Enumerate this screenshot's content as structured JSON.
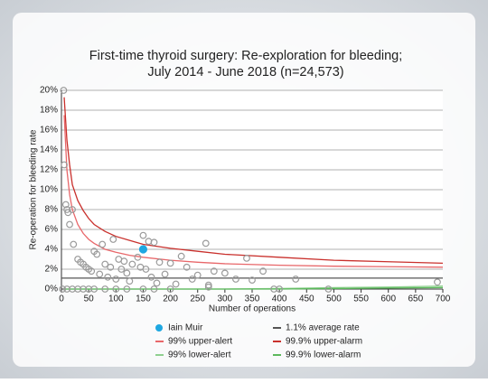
{
  "chart_data": {
    "type": "funnel",
    "title": "First-time thyroid surgery: Re-exploration for bleeding;",
    "subtitle": "July 2014 - June 2018 (n=24,573)",
    "x_label": "Number of operations",
    "y_label": "Re-operation for bleeding rate",
    "xlim": [
      0,
      700
    ],
    "xticks": [
      0,
      50,
      100,
      150,
      200,
      250,
      300,
      350,
      400,
      450,
      500,
      550,
      600,
      650,
      700
    ],
    "ylim": [
      0,
      20
    ],
    "yticks": [
      {
        "value": 0,
        "label": "0%"
      },
      {
        "value": 2,
        "label": "2%"
      },
      {
        "value": 4,
        "label": "4%"
      },
      {
        "value": 6,
        "label": "6%"
      },
      {
        "value": 8,
        "label": "8%"
      },
      {
        "value": 10,
        "label": "10%"
      },
      {
        "value": 12,
        "label": "12%"
      },
      {
        "value": 14,
        "label": "14%"
      },
      {
        "value": 16,
        "label": "16%"
      },
      {
        "value": 18,
        "label": "18%"
      },
      {
        "value": 20,
        "label": "20%"
      }
    ],
    "grid": true,
    "series": [
      {
        "type": "scatter",
        "marker": "open",
        "color": "#9a9a9a",
        "x": [
          4,
          5,
          8,
          10,
          12,
          15,
          20,
          22,
          30,
          35,
          40,
          45,
          50,
          55,
          60,
          65,
          70,
          75,
          80,
          85,
          90,
          95,
          100,
          105,
          110,
          115,
          120,
          125,
          130,
          140,
          145,
          150,
          155,
          160,
          165,
          170,
          175,
          180,
          190,
          200,
          210,
          220,
          230,
          240,
          250,
          265,
          270,
          280,
          300,
          320,
          340,
          350,
          370,
          430,
          690,
          2,
          10,
          20,
          30,
          40,
          50,
          60,
          80,
          100,
          120,
          150,
          170,
          200,
          270,
          390,
          400,
          490
        ],
        "values": [
          20,
          12.5,
          8.5,
          8,
          7.7,
          6.5,
          8,
          4.5,
          3,
          2.7,
          2.5,
          2.2,
          2,
          1.8,
          3.8,
          3.5,
          1.5,
          4.5,
          2.5,
          1.2,
          2.2,
          5,
          1,
          3,
          2,
          2.8,
          1.6,
          0.8,
          2.5,
          3.2,
          2.2,
          5.4,
          2,
          4.8,
          1.2,
          4.7,
          0.6,
          2.7,
          1.5,
          2.6,
          0.5,
          3.3,
          2.2,
          1,
          1.4,
          4.6,
          0.4,
          1.8,
          1.6,
          1,
          3.1,
          0.9,
          1.8,
          1,
          0.7,
          0,
          0,
          0,
          0,
          0,
          0,
          0,
          0,
          0,
          0,
          0,
          0,
          0,
          0.2,
          0,
          0,
          0
        ]
      },
      {
        "type": "scatter",
        "marker": "filled",
        "name": "Iain Muir",
        "color": "#1ea7e1",
        "x": [
          150
        ],
        "values": [
          4
        ]
      },
      {
        "type": "line",
        "name": "1.1% average rate",
        "color": "#555555",
        "x": [
          0,
          700
        ],
        "values": [
          1.1,
          1.1
        ]
      },
      {
        "type": "line",
        "name": "99% upper-alert",
        "color": "#e8676a",
        "x": [
          5,
          10,
          15,
          20,
          30,
          40,
          50,
          60,
          80,
          100,
          125,
          150,
          200,
          250,
          300,
          400,
          500,
          600,
          700
        ],
        "values": [
          17.5,
          12,
          9.5,
          8,
          6.5,
          5.6,
          5,
          4.6,
          4,
          3.7,
          3.4,
          3.2,
          2.9,
          2.7,
          2.55,
          2.4,
          2.3,
          2.25,
          2.2
        ]
      },
      {
        "type": "line",
        "name": "99.9% upper-alarm",
        "color": "#c9302c",
        "x": [
          5,
          10,
          15,
          20,
          30,
          40,
          50,
          60,
          80,
          100,
          125,
          150,
          200,
          250,
          300,
          400,
          500,
          600,
          700
        ],
        "values": [
          19.3,
          15,
          12.5,
          10.5,
          8.9,
          7.9,
          7.1,
          6.5,
          5.8,
          5.3,
          4.9,
          4.5,
          4.1,
          3.8,
          3.5,
          3.2,
          2.9,
          2.75,
          2.6
        ]
      },
      {
        "type": "line",
        "name": "99% lower-alert",
        "color": "#8fd08f",
        "x": [
          5,
          100,
          200,
          300,
          400,
          500,
          600,
          700
        ],
        "values": [
          0,
          0,
          0,
          0,
          0.05,
          0.15,
          0.2,
          0.3
        ]
      },
      {
        "type": "line",
        "name": "99.9% lower-alarm",
        "color": "#5cb85c",
        "x": [
          5,
          100,
          200,
          300,
          400,
          500,
          600,
          700
        ],
        "values": [
          0,
          0,
          0,
          0,
          0,
          0.05,
          0.1,
          0.15
        ]
      }
    ]
  }
}
